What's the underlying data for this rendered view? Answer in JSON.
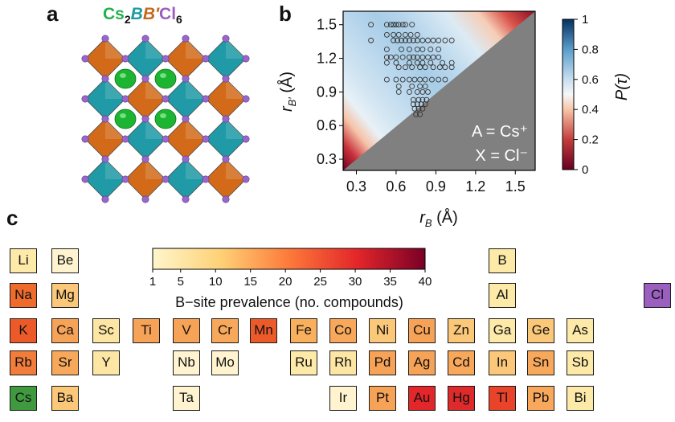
{
  "panels": {
    "a": "a",
    "b": "b",
    "c": "c"
  },
  "formula": {
    "cs": "Cs",
    "cs_sub": "2",
    "b": "B",
    "bp": "B′",
    "cl": "Cl",
    "cl_sub": "6"
  },
  "plot_b": {
    "xlabel": "r",
    "xlabel_sub": "B",
    "xlabel_unit": " (Å)",
    "ylabel": "r",
    "ylabel_sub": "B′",
    "ylabel_unit": " (Å)",
    "xticks": [
      "0.3",
      "0.6",
      "0.9",
      "1.2",
      "1.5"
    ],
    "yticks": [
      "0.3",
      "0.6",
      "0.9",
      "1.2",
      "1.5"
    ],
    "annotation_a": "A = Cs⁺",
    "annotation_x": "X = Cl⁻",
    "cbar_label": "P(τ)",
    "cbar_ticks": [
      "0",
      "0.2",
      "0.4",
      "0.6",
      "0.8",
      "1"
    ]
  },
  "chart_data": {
    "type": "scatter",
    "xlabel": "r_B (Å)",
    "ylabel": "r_B′ (Å)",
    "xlim": [
      0.2,
      1.65
    ],
    "ylim": [
      0.2,
      1.62
    ],
    "colorbar": {
      "label": "P(τ)",
      "range": [
        0,
        1
      ]
    },
    "points": [
      [
        0.41,
        1.5
      ],
      [
        0.53,
        1.5
      ],
      [
        0.56,
        1.5
      ],
      [
        0.58,
        1.5
      ],
      [
        0.6,
        1.5
      ],
      [
        0.62,
        1.5
      ],
      [
        0.65,
        1.5
      ],
      [
        0.67,
        1.5
      ],
      [
        0.72,
        1.5
      ],
      [
        0.41,
        1.36
      ],
      [
        0.53,
        1.41
      ],
      [
        0.58,
        1.41
      ],
      [
        0.62,
        1.41
      ],
      [
        0.67,
        1.41
      ],
      [
        0.71,
        1.41
      ],
      [
        0.76,
        1.41
      ],
      [
        0.58,
        1.36
      ],
      [
        0.61,
        1.36
      ],
      [
        0.64,
        1.36
      ],
      [
        0.67,
        1.36
      ],
      [
        0.7,
        1.36
      ],
      [
        0.73,
        1.36
      ],
      [
        0.76,
        1.36
      ],
      [
        0.8,
        1.36
      ],
      [
        0.84,
        1.36
      ],
      [
        0.88,
        1.36
      ],
      [
        0.92,
        1.36
      ],
      [
        0.97,
        1.36
      ],
      [
        1.02,
        1.36
      ],
      [
        0.53,
        1.28
      ],
      [
        0.64,
        1.28
      ],
      [
        0.7,
        1.28
      ],
      [
        0.76,
        1.28
      ],
      [
        0.8,
        1.28
      ],
      [
        0.86,
        1.28
      ],
      [
        0.92,
        1.28
      ],
      [
        0.53,
        1.21
      ],
      [
        0.56,
        1.21
      ],
      [
        0.6,
        1.21
      ],
      [
        0.65,
        1.21
      ],
      [
        0.7,
        1.21
      ],
      [
        0.73,
        1.21
      ],
      [
        0.76,
        1.21
      ],
      [
        0.8,
        1.21
      ],
      [
        0.84,
        1.21
      ],
      [
        0.88,
        1.21
      ],
      [
        0.92,
        1.21
      ],
      [
        0.53,
        1.16
      ],
      [
        0.6,
        1.16
      ],
      [
        0.7,
        1.16
      ],
      [
        0.76,
        1.16
      ],
      [
        0.8,
        1.16
      ],
      [
        0.86,
        1.16
      ],
      [
        0.95,
        1.16
      ],
      [
        1.02,
        1.16
      ],
      [
        0.62,
        1.12
      ],
      [
        0.67,
        1.12
      ],
      [
        0.72,
        1.12
      ],
      [
        0.78,
        1.12
      ],
      [
        0.82,
        1.12
      ],
      [
        0.88,
        1.12
      ],
      [
        0.93,
        1.12
      ],
      [
        0.97,
        1.12
      ],
      [
        1.02,
        1.12
      ],
      [
        0.53,
        1.01
      ],
      [
        0.6,
        1.01
      ],
      [
        0.65,
        1.01
      ],
      [
        0.7,
        1.01
      ],
      [
        0.74,
        1.01
      ],
      [
        0.78,
        1.01
      ],
      [
        0.82,
        1.01
      ],
      [
        0.87,
        1.01
      ],
      [
        0.92,
        1.01
      ],
      [
        0.97,
        1.01
      ],
      [
        0.62,
        0.95
      ],
      [
        0.72,
        0.95
      ],
      [
        0.78,
        0.95
      ],
      [
        0.82,
        0.95
      ],
      [
        0.62,
        0.9
      ],
      [
        0.7,
        0.9
      ],
      [
        0.76,
        0.9
      ],
      [
        0.8,
        0.9
      ],
      [
        0.84,
        0.9
      ],
      [
        0.73,
        0.83
      ],
      [
        0.77,
        0.83
      ],
      [
        0.8,
        0.83
      ],
      [
        0.83,
        0.83
      ],
      [
        0.73,
        0.79
      ],
      [
        0.76,
        0.79
      ],
      [
        0.79,
        0.79
      ],
      [
        0.82,
        0.79
      ],
      [
        0.74,
        0.75
      ],
      [
        0.77,
        0.75
      ],
      [
        0.8,
        0.75
      ],
      [
        0.75,
        0.7
      ],
      [
        0.78,
        0.7
      ]
    ]
  },
  "legend_c": {
    "ticks": [
      "1",
      "5",
      "10",
      "15",
      "20",
      "25",
      "30",
      "35",
      "40"
    ],
    "label": "B−site prevalence (no. compounds)",
    "tick_values": [
      1,
      5,
      10,
      15,
      20,
      25,
      30,
      35,
      40
    ]
  },
  "elements": [
    {
      "sym": "Li",
      "color": "#fde9a8"
    },
    {
      "sym": "Be",
      "color": "#fff4cf"
    },
    {
      "sym": "B",
      "color": "#fde9a8"
    },
    {
      "sym": "Na",
      "color": "#ef6b2c"
    },
    {
      "sym": "Mg",
      "color": "#fbc879"
    },
    {
      "sym": "Al",
      "color": "#fde9a8"
    },
    {
      "sym": "Cl",
      "color": "#9b5fc0"
    },
    {
      "sym": "K",
      "color": "#ec5a2a"
    },
    {
      "sym": "Ca",
      "color": "#f7a357"
    },
    {
      "sym": "Sc",
      "color": "#fde6a4"
    },
    {
      "sym": "Ti",
      "color": "#f7a357"
    },
    {
      "sym": "V",
      "color": "#f7a357"
    },
    {
      "sym": "Cr",
      "color": "#f8a85a"
    },
    {
      "sym": "Mn",
      "color": "#ec5a2a"
    },
    {
      "sym": "Fe",
      "color": "#f9b05c"
    },
    {
      "sym": "Co",
      "color": "#f8a85a"
    },
    {
      "sym": "Ni",
      "color": "#fbc879"
    },
    {
      "sym": "Cu",
      "color": "#f7a357"
    },
    {
      "sym": "Zn",
      "color": "#fbc879"
    },
    {
      "sym": "Ga",
      "color": "#fde9a8"
    },
    {
      "sym": "Ge",
      "color": "#fbc879"
    },
    {
      "sym": "As",
      "color": "#fde9a8"
    },
    {
      "sym": "Rb",
      "color": "#f27c3a"
    },
    {
      "sym": "Sr",
      "color": "#f8a85a"
    },
    {
      "sym": "Y",
      "color": "#fde6a4"
    },
    {
      "sym": "Nb",
      "color": "#fff4cf"
    },
    {
      "sym": "Mo",
      "color": "#fff4cf"
    },
    {
      "sym": "Ru",
      "color": "#fde9a8"
    },
    {
      "sym": "Rh",
      "color": "#fde6a4"
    },
    {
      "sym": "Pd",
      "color": "#f7a357"
    },
    {
      "sym": "Ag",
      "color": "#f7a357"
    },
    {
      "sym": "Cd",
      "color": "#f8a85a"
    },
    {
      "sym": "In",
      "color": "#fbc879"
    },
    {
      "sym": "Sn",
      "color": "#f8a85a"
    },
    {
      "sym": "Sb",
      "color": "#fde9a8"
    },
    {
      "sym": "Cs",
      "color": "#3f9a3f"
    },
    {
      "sym": "Ba",
      "color": "#fbc879"
    },
    {
      "sym": "Ta",
      "color": "#fff4cf"
    },
    {
      "sym": "Ir",
      "color": "#fff4cf"
    },
    {
      "sym": "Pt",
      "color": "#f7a357"
    },
    {
      "sym": "Au",
      "color": "#e3262a"
    },
    {
      "sym": "Hg",
      "color": "#de2a2a"
    },
    {
      "sym": "Tl",
      "color": "#e9432a"
    },
    {
      "sym": "Pb",
      "color": "#f8a85a"
    },
    {
      "sym": "Bi",
      "color": "#fde9a8"
    }
  ]
}
